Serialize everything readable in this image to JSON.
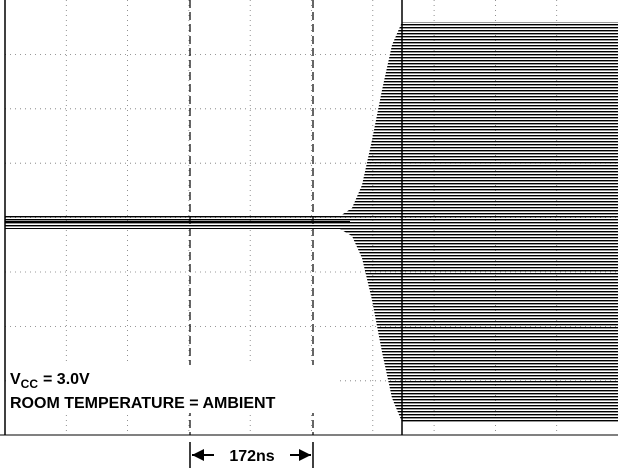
{
  "annotations": {
    "supply": {
      "symbol": "V",
      "subscript": "CC",
      "value": "= 3.0V"
    },
    "temperature": "ROOM TEMPERATURE = AMBIENT"
  },
  "time_marker": "172ns"
}
